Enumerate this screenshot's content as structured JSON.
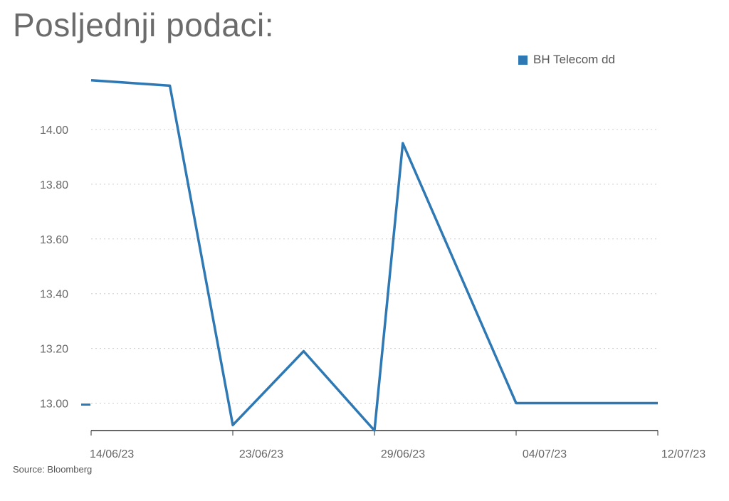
{
  "title": "Posljednji podaci:",
  "source": "Source: Bloomberg",
  "colors": {
    "series": "#2e78b4",
    "grid": "#cccccc",
    "axis": "#333333",
    "text": "#666666"
  },
  "chart_data": {
    "type": "line",
    "title": "",
    "xlabel": "",
    "ylabel": "",
    "legend_position": "top-right",
    "grid": true,
    "ylim": [
      12.9,
      14.2
    ],
    "x_ticks": [
      "14/06/23",
      "23/06/23",
      "29/06/23",
      "04/07/23",
      "12/07/23"
    ],
    "y_ticks": [
      13.0,
      13.2,
      13.4,
      13.6,
      13.8,
      14.0
    ],
    "y_tick_labels": [
      "13.00",
      "13.20",
      "13.40",
      "13.60",
      "13.80",
      "14.00"
    ],
    "x": [
      "14/06/23",
      "19/06/23",
      "23/06/23",
      "26/06/23",
      "29/06/23",
      "30/06/23",
      "04/07/23",
      "07/07/23",
      "12/07/23"
    ],
    "series": [
      {
        "name": "BH Telecom dd",
        "color": "#2e78b4",
        "values": [
          14.18,
          14.16,
          12.92,
          13.19,
          12.9,
          13.95,
          13.0,
          13.0,
          13.0
        ]
      }
    ]
  }
}
